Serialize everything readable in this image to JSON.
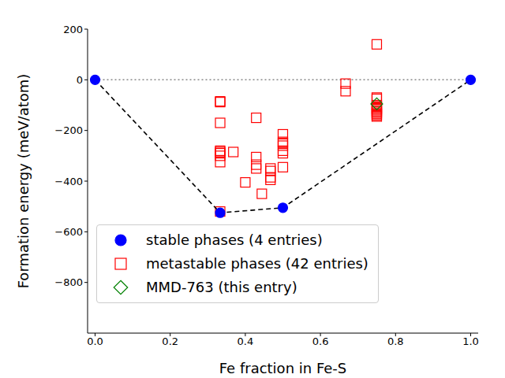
{
  "chart_data": {
    "type": "scatter",
    "xlabel": "Fe fraction in Fe-S",
    "ylabel": "Formation energy (meV/atom)",
    "xlim": [
      -0.02,
      1.02
    ],
    "ylim": [
      -1000,
      200
    ],
    "xticks": [
      {
        "value": 0,
        "label": "0.0"
      },
      0.2,
      0.4,
      0.6,
      0.8,
      {
        "value": 1,
        "label": "1.0"
      }
    ],
    "yticks": [
      {
        "value": -800,
        "label": "−800"
      },
      {
        "value": -600,
        "label": "−600"
      },
      {
        "value": -400,
        "label": "−400"
      },
      {
        "value": -200,
        "label": "−200"
      },
      0,
      200
    ],
    "grid": false,
    "legend": "lower left",
    "series": [
      {
        "name": "metastable phases (42 entries)",
        "color": "#ff0000",
        "marker": "open_square",
        "x": [
          0.333,
          0.333,
          0.333,
          0.333,
          0.333,
          0.333,
          0.333,
          0.333,
          0.333,
          0.368,
          0.4,
          0.429,
          0.429,
          0.429,
          0.429,
          0.444,
          0.467,
          0.467,
          0.467,
          0.467,
          0.5,
          0.5,
          0.5,
          0.5,
          0.5,
          0.5,
          0.5,
          0.667,
          0.667,
          0.75,
          0.75,
          0.75,
          0.75,
          0.75,
          0.75,
          0.75,
          0.75,
          0.75,
          0.75,
          0.75,
          0.75,
          0.75
        ],
        "y": [
          -520,
          -85,
          -88,
          -170,
          -280,
          -285,
          -290,
          -300,
          -325,
          -285,
          -405,
          -150,
          -305,
          -335,
          -350,
          -450,
          -350,
          -360,
          -385,
          -395,
          -215,
          -245,
          -250,
          -260,
          -280,
          -290,
          -345,
          -15,
          -45,
          140,
          -70,
          -75,
          -100,
          -105,
          -110,
          -115,
          -120,
          -125,
          -130,
          -135,
          -140,
          -145
        ]
      },
      {
        "name": "MMD-763 (this entry)",
        "color": "#008000",
        "marker": "open_diamond",
        "x": [
          0.75
        ],
        "y": [
          -95
        ]
      },
      {
        "name": "stable phases (4 entries)",
        "color": "#0000ff",
        "marker": "filled_circle",
        "line_style": "dashed",
        "x": [
          0,
          0.333,
          0.5,
          1
        ],
        "y": [
          0,
          -525,
          -505,
          0
        ]
      }
    ]
  }
}
